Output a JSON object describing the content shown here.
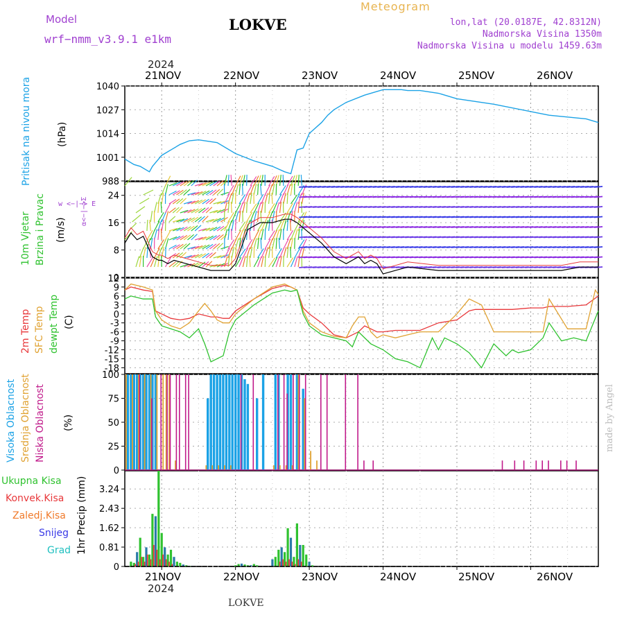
{
  "header": {
    "model_label": "Model",
    "model_name": "wrf−nmm_v3.9.1  e1km",
    "station": "LOKVE",
    "product": "Meteogram",
    "coords": "lon,lat (20.0187E, 42.8312N)",
    "elevation": "Nadmorska Visina 1350m",
    "model_elevation": "Nadmorska Visina u modelu 1459.63m"
  },
  "footer": {
    "station": "LOKVE",
    "watermark": "made by Angel"
  },
  "time_axis": {
    "year": "2024",
    "labels": [
      "21NOV",
      "22NOV",
      "23NOV",
      "24NOV",
      "25NOV",
      "26NOV"
    ],
    "range_hours": [
      -12,
      142
    ]
  },
  "colors": {
    "pressure": "#1ba2e6",
    "temp2m": "#e8373a",
    "sfc": "#e0a232",
    "dewpt": "#2fc22f",
    "cloud_high": "#1ba2e6",
    "cloud_mid": "#e0a232",
    "cloud_low": "#c0198a",
    "precip_total": "#2fc22f",
    "precip_conv": "#e8373a",
    "precip_grid": "#f07a2a",
    "snow": "#3a3ae6",
    "hail": "#20c0c0",
    "wind_label": "#2fc22f",
    "wind_sub": "#3bc43b",
    "compass": "#a040d0",
    "purple_text": "#a040d0",
    "orange_text": "#e8b450"
  },
  "chart_data": [
    {
      "type": "line",
      "title": "",
      "ylabel": "Pritisak na nivou mora",
      "unit": "(hPa)",
      "ylim": [
        988,
        1040
      ],
      "yticks": [
        1040,
        1027,
        1014,
        1001,
        988
      ],
      "series": [
        {
          "x": [
            -12,
            -9,
            -7,
            -4,
            -3,
            0,
            3,
            6,
            9,
            12,
            18,
            24,
            30,
            36,
            40,
            42,
            44,
            46,
            48,
            52,
            54,
            56,
            60,
            66,
            72,
            78,
            80,
            84,
            90,
            96,
            100,
            108,
            120,
            126,
            132,
            138,
            142
          ],
          "values": [
            1000,
            997,
            996,
            993,
            996,
            1002,
            1005,
            1008,
            1010,
            1010.5,
            1009,
            1003,
            999,
            996,
            993,
            992,
            1005,
            1006,
            1014,
            1020,
            1024,
            1027,
            1031,
            1035,
            1038,
            1038,
            1037.5,
            1037.5,
            1036,
            1033,
            1032,
            1030,
            1026,
            1024,
            1023,
            1022,
            1020
          ]
        }
      ]
    },
    {
      "type": "line",
      "ylabel": "10m Vjetar Brzina i Pravac",
      "unit": "(m/s)",
      "compass": [
        "N",
        "E",
        "S",
        "W"
      ],
      "ylim": [
        0,
        28
      ],
      "yticks": [
        0,
        8,
        16,
        24
      ],
      "series": [
        {
          "x": [
            -12,
            -10,
            -8,
            -6,
            -3,
            -1,
            0,
            2,
            4,
            8,
            12,
            16,
            20,
            22,
            24,
            28,
            32,
            36,
            40,
            42,
            44,
            48,
            52,
            56,
            60,
            64,
            66,
            68,
            70,
            72,
            76,
            80,
            90,
            100,
            110,
            120,
            130,
            136,
            140,
            142
          ],
          "values": [
            10,
            13,
            11,
            12,
            6,
            5,
            5,
            4,
            5,
            4,
            3,
            2,
            2,
            2,
            4,
            14,
            16,
            16,
            17,
            17,
            16,
            13,
            10,
            6,
            4,
            6,
            4,
            5,
            4,
            1,
            2,
            3,
            2,
            2,
            2,
            2,
            2,
            3,
            3,
            3
          ]
        }
      ]
    },
    {
      "type": "line",
      "ylabel": "2m Temp / SFC Temp / dewpt Temp",
      "unit": "(C)",
      "ylim": [
        -20,
        12
      ],
      "yticks": [
        12,
        9,
        6,
        3,
        0,
        -3,
        -6,
        -9,
        -12,
        -15,
        -18
      ],
      "series": [
        {
          "name": "2m Temp",
          "x": [
            -12,
            -10,
            -6,
            -3,
            -2,
            0,
            3,
            6,
            9,
            12,
            16,
            18,
            20,
            22,
            24,
            30,
            36,
            40,
            42,
            44,
            46,
            48,
            52,
            56,
            60,
            64,
            66,
            70,
            72,
            76,
            80,
            84,
            90,
            96,
            100,
            102,
            108,
            114,
            120,
            124,
            126,
            132,
            138,
            142
          ],
          "values": [
            8,
            9,
            8,
            7.5,
            1,
            0,
            -1.5,
            -2,
            -1.5,
            0,
            -1,
            -1,
            -1.5,
            -1.5,
            1,
            5,
            8.5,
            9.5,
            9,
            8,
            2,
            0,
            -3,
            -7,
            -8,
            -6,
            -4,
            -6,
            -6,
            -5.5,
            -5.5,
            -5.5,
            -3,
            -2,
            1,
            1.5,
            1.5,
            1.5,
            2,
            2,
            2.5,
            2.5,
            3,
            6
          ]
        },
        {
          "name": "SFC Temp",
          "x": [
            -12,
            -10,
            -6,
            -3,
            -2,
            0,
            3,
            6,
            9,
            12,
            14,
            16,
            18,
            20,
            22,
            24,
            30,
            36,
            40,
            42,
            44,
            46,
            48,
            52,
            56,
            60,
            62,
            64,
            66,
            68,
            70,
            72,
            76,
            80,
            84,
            90,
            96,
            100,
            104,
            108,
            114,
            120,
            124,
            126,
            132,
            138,
            141,
            142
          ],
          "values": [
            8,
            10,
            9,
            8,
            1,
            -2,
            -4,
            -5,
            -3,
            1,
            3.5,
            1,
            -2,
            -3,
            -3,
            0,
            5,
            9,
            10,
            9,
            8,
            1,
            -3,
            -6,
            -7.5,
            -8,
            -4,
            -1,
            -1,
            -6,
            -8,
            -7,
            -8,
            -7,
            -6,
            -6,
            0,
            5,
            3,
            -6,
            -6,
            -6,
            -6,
            5,
            -5,
            -5,
            8,
            6.5
          ]
        },
        {
          "name": "dewpt Temp",
          "x": [
            -12,
            -10,
            -6,
            -3,
            -2,
            0,
            3,
            6,
            9,
            12,
            14,
            16,
            18,
            20,
            22,
            24,
            30,
            36,
            40,
            42,
            44,
            46,
            48,
            52,
            56,
            60,
            62,
            64,
            68,
            72,
            76,
            80,
            84,
            88,
            90,
            92,
            96,
            100,
            104,
            108,
            112,
            114,
            116,
            120,
            124,
            126,
            130,
            134,
            138,
            142
          ],
          "values": [
            5,
            6,
            5,
            5,
            -1,
            -4,
            -5,
            -6,
            -8,
            -5,
            -10,
            -16,
            -15,
            -14,
            -6,
            -2,
            3,
            7,
            8,
            7.5,
            8,
            0,
            -4,
            -7,
            -8,
            -9,
            -11,
            -6,
            -10,
            -12,
            -15,
            -16,
            -18,
            -8,
            -12,
            -8,
            -10,
            -13,
            -18,
            -10,
            -14,
            -12,
            -13,
            -12,
            -8,
            -3,
            -9,
            -8,
            -9,
            1
          ]
        }
      ]
    },
    {
      "type": "bar",
      "ylabel": "Visoka Oblacnost / Srednja Oblacnost / Niska Oblacnost",
      "unit": "(%)",
      "ylim": [
        0,
        100
      ],
      "yticks": [
        0,
        25,
        50,
        75,
        100
      ],
      "series": [
        {
          "name": "Visoka Oblacnost",
          "x": [
            -11,
            -10,
            -9,
            -8,
            -7,
            -6,
            -5,
            -4,
            -3,
            -2,
            15,
            16,
            17,
            18,
            19,
            20,
            21,
            22,
            23,
            24,
            25,
            26,
            27,
            28,
            31,
            33,
            37,
            38,
            41,
            42,
            44,
            46
          ],
          "values": [
            100,
            100,
            100,
            100,
            100,
            100,
            100,
            100,
            100,
            100,
            75,
            100,
            100,
            100,
            100,
            100,
            100,
            100,
            100,
            100,
            100,
            100,
            95,
            90,
            75,
            100,
            100,
            100,
            100,
            100,
            100,
            85
          ]
        },
        {
          "name": "Srednja Oblacnost",
          "x": [
            -12,
            -10,
            -8,
            -6,
            -4,
            -2,
            0,
            1,
            2,
            4,
            14,
            16,
            18,
            20,
            22,
            36,
            38,
            40,
            42,
            44,
            46,
            48,
            50
          ],
          "values": [
            100,
            100,
            100,
            100,
            100,
            100,
            100,
            100,
            100,
            10,
            5,
            5,
            5,
            5,
            5,
            5,
            5,
            5,
            5,
            100,
            75,
            20,
            10
          ]
        },
        {
          "name": "Niska Oblacnost",
          "x": [
            -7,
            -3,
            0,
            2,
            3,
            5,
            6,
            8,
            9,
            26,
            30,
            38,
            40,
            41,
            43,
            45,
            47,
            52,
            54,
            60,
            64,
            66,
            69,
            111,
            115,
            118,
            122,
            124,
            126,
            130,
            132,
            135
          ],
          "values": [
            100,
            75,
            100,
            100,
            100,
            100,
            100,
            100,
            100,
            100,
            100,
            100,
            100,
            80,
            100,
            100,
            100,
            100,
            100,
            100,
            100,
            10,
            10,
            10,
            10,
            10,
            10,
            10,
            10,
            10,
            10,
            10
          ]
        }
      ]
    },
    {
      "type": "bar",
      "ylabel": "1hr Precip",
      "unit": "(mm)",
      "ylim": [
        0,
        4
      ],
      "yticks": [
        0,
        0.81,
        1.62,
        2.43,
        3.24
      ],
      "legend": [
        "Ukupna Kisa",
        "Konvek.Kisa",
        "Zaledj.Kisa",
        "Snijeg",
        "Grad"
      ],
      "series": [
        {
          "name": "Ukupna Kisa",
          "x": [
            -10,
            -9,
            -8,
            -7,
            -6,
            -5,
            -4,
            -3,
            -2,
            -1,
            0,
            1,
            2,
            3,
            4,
            5,
            6,
            7,
            8,
            9,
            10,
            24,
            25,
            26,
            27,
            28,
            29,
            30,
            31,
            36,
            37,
            38,
            39,
            40,
            41,
            42,
            43,
            44,
            45,
            46,
            47,
            48,
            49
          ],
          "values": [
            0.2,
            0.15,
            0.6,
            1.2,
            0.4,
            0.8,
            0.5,
            2.2,
            2.1,
            4.0,
            1.4,
            0.8,
            0.5,
            0.7,
            0.4,
            0.2,
            0.15,
            0.08,
            0.05,
            0.02,
            0.02,
            0.05,
            0.1,
            0.12,
            0.08,
            0.05,
            0.05,
            0.1,
            0.05,
            0.3,
            0.4,
            0.7,
            0.8,
            0.6,
            1.6,
            1.2,
            0.4,
            1.8,
            0.9,
            0.9,
            0.5,
            0.2,
            0.05
          ]
        },
        {
          "name": "Konvek.Kisa",
          "x": [
            -9,
            -8,
            -7,
            -6,
            -5,
            -4,
            -3,
            -2,
            -1,
            0,
            1,
            2,
            3,
            38,
            39,
            40,
            41,
            42,
            43,
            44,
            45
          ],
          "values": [
            0.1,
            0.2,
            0.4,
            0.2,
            0.5,
            0.3,
            0.9,
            0.7,
            0.3,
            0.5,
            0.3,
            0.2,
            0.1,
            0.2,
            0.3,
            0.2,
            0.3,
            0.2,
            0.1,
            0.3,
            0.2
          ]
        }
      ]
    }
  ]
}
